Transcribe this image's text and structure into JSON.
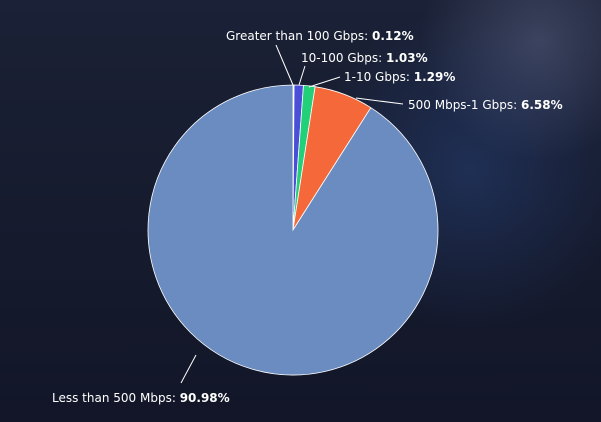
{
  "chart_data": {
    "type": "pie",
    "categories": [
      "Greater than 100 Gbps:",
      "10-100 Gbps:",
      "1-10 Gbps:",
      "500 Mbps-1 Gbps:",
      "Less than 500 Mbps:"
    ],
    "values": [
      0.12,
      1.03,
      1.29,
      6.58,
      90.98
    ],
    "value_labels": [
      "0.12%",
      "1.03%",
      "1.29%",
      "6.58%",
      "90.98%"
    ],
    "colors": [
      "#e8ecf5",
      "#4b4fd8",
      "#22d07a",
      "#f4683a",
      "#6b8cc0"
    ]
  }
}
